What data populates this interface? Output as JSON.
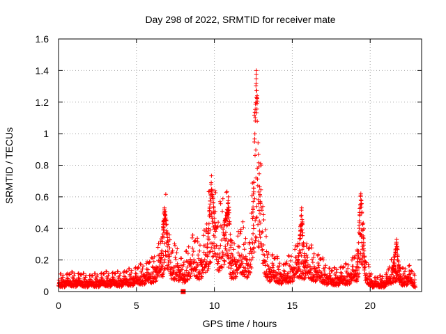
{
  "chart_data": {
    "type": "scatter",
    "title": "Day 298 of 2022, SRMTID for receiver mate",
    "xlabel": "GPS time / hours",
    "ylabel": "SRMTID / TECUs",
    "xlim": [
      0,
      23.3
    ],
    "ylim": [
      0,
      1.6
    ],
    "xticks": [
      0,
      5,
      10,
      15,
      20
    ],
    "xtick_labels": [
      "0",
      "5",
      "10",
      "15",
      "20"
    ],
    "yticks": [
      0,
      0.2,
      0.4,
      0.6,
      0.8,
      1.0,
      1.2,
      1.4,
      1.6
    ],
    "ytick_labels": [
      "0",
      "0.2",
      "0.4",
      "0.6",
      "0.8",
      "1",
      "1.2",
      "1.4",
      "1.6"
    ],
    "grid": true,
    "marker": "plus",
    "color": "#ff0000",
    "gap_marker": {
      "x": 8.0,
      "y": 0.0,
      "shape": "square"
    },
    "series": [
      {
        "name": "SRMTID",
        "envelope": [
          [
            0.0,
            0.06
          ],
          [
            1.0,
            0.07
          ],
          [
            2.0,
            0.06
          ],
          [
            3.0,
            0.07
          ],
          [
            4.0,
            0.07
          ],
          [
            5.0,
            0.09
          ],
          [
            6.0,
            0.12
          ],
          [
            6.7,
            0.22
          ],
          [
            6.9,
            0.42
          ],
          [
            7.2,
            0.15
          ],
          [
            7.6,
            0.18
          ],
          [
            8.0,
            0.1
          ],
          [
            8.5,
            0.22
          ],
          [
            9.0,
            0.18
          ],
          [
            9.5,
            0.25
          ],
          [
            9.9,
            0.55
          ],
          [
            10.2,
            0.25
          ],
          [
            10.7,
            0.45
          ],
          [
            11.1,
            0.18
          ],
          [
            11.8,
            0.25
          ],
          [
            12.3,
            0.18
          ],
          [
            12.7,
            0.85
          ],
          [
            12.9,
            0.6
          ],
          [
            13.2,
            0.25
          ],
          [
            13.5,
            0.15
          ],
          [
            14.5,
            0.1
          ],
          [
            15.5,
            0.2
          ],
          [
            16.5,
            0.15
          ],
          [
            17.5,
            0.08
          ],
          [
            18.5,
            0.1
          ],
          [
            19.2,
            0.15
          ],
          [
            19.4,
            0.45
          ],
          [
            19.7,
            0.12
          ],
          [
            20.2,
            0.05
          ],
          [
            21.0,
            0.06
          ],
          [
            21.6,
            0.15
          ],
          [
            22.0,
            0.08
          ],
          [
            22.5,
            0.1
          ],
          [
            22.9,
            0.05
          ]
        ],
        "peaks": [
          {
            "x": 6.8,
            "y": 0.53
          },
          {
            "x": 9.8,
            "y": 0.69
          },
          {
            "x": 10.9,
            "y": 0.6
          },
          {
            "x": 12.7,
            "y": 1.4
          },
          {
            "x": 15.6,
            "y": 0.53
          },
          {
            "x": 19.4,
            "y": 0.62
          },
          {
            "x": 21.7,
            "y": 0.33
          }
        ]
      }
    ]
  }
}
